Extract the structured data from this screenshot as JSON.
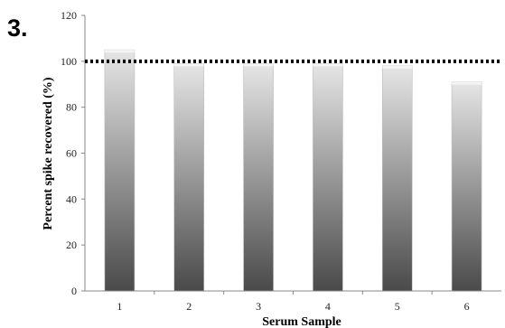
{
  "panel_label": "3.",
  "chart_data": {
    "type": "bar",
    "categories": [
      "1",
      "2",
      "3",
      "4",
      "5",
      "6"
    ],
    "values": [
      105,
      99,
      99,
      99,
      98,
      91
    ],
    "xlabel": "Serum Sample",
    "ylabel": "Percent spike recovered (%)",
    "ylim": [
      0,
      120
    ],
    "yticks": [
      0,
      20,
      40,
      60,
      80,
      100,
      120
    ],
    "reference_line": {
      "value": 100,
      "style": "dotted",
      "color": "#000000"
    },
    "grid": false,
    "bar_color_light": "#e6e6e6",
    "bar_color_dark": "#4a4a4a"
  }
}
